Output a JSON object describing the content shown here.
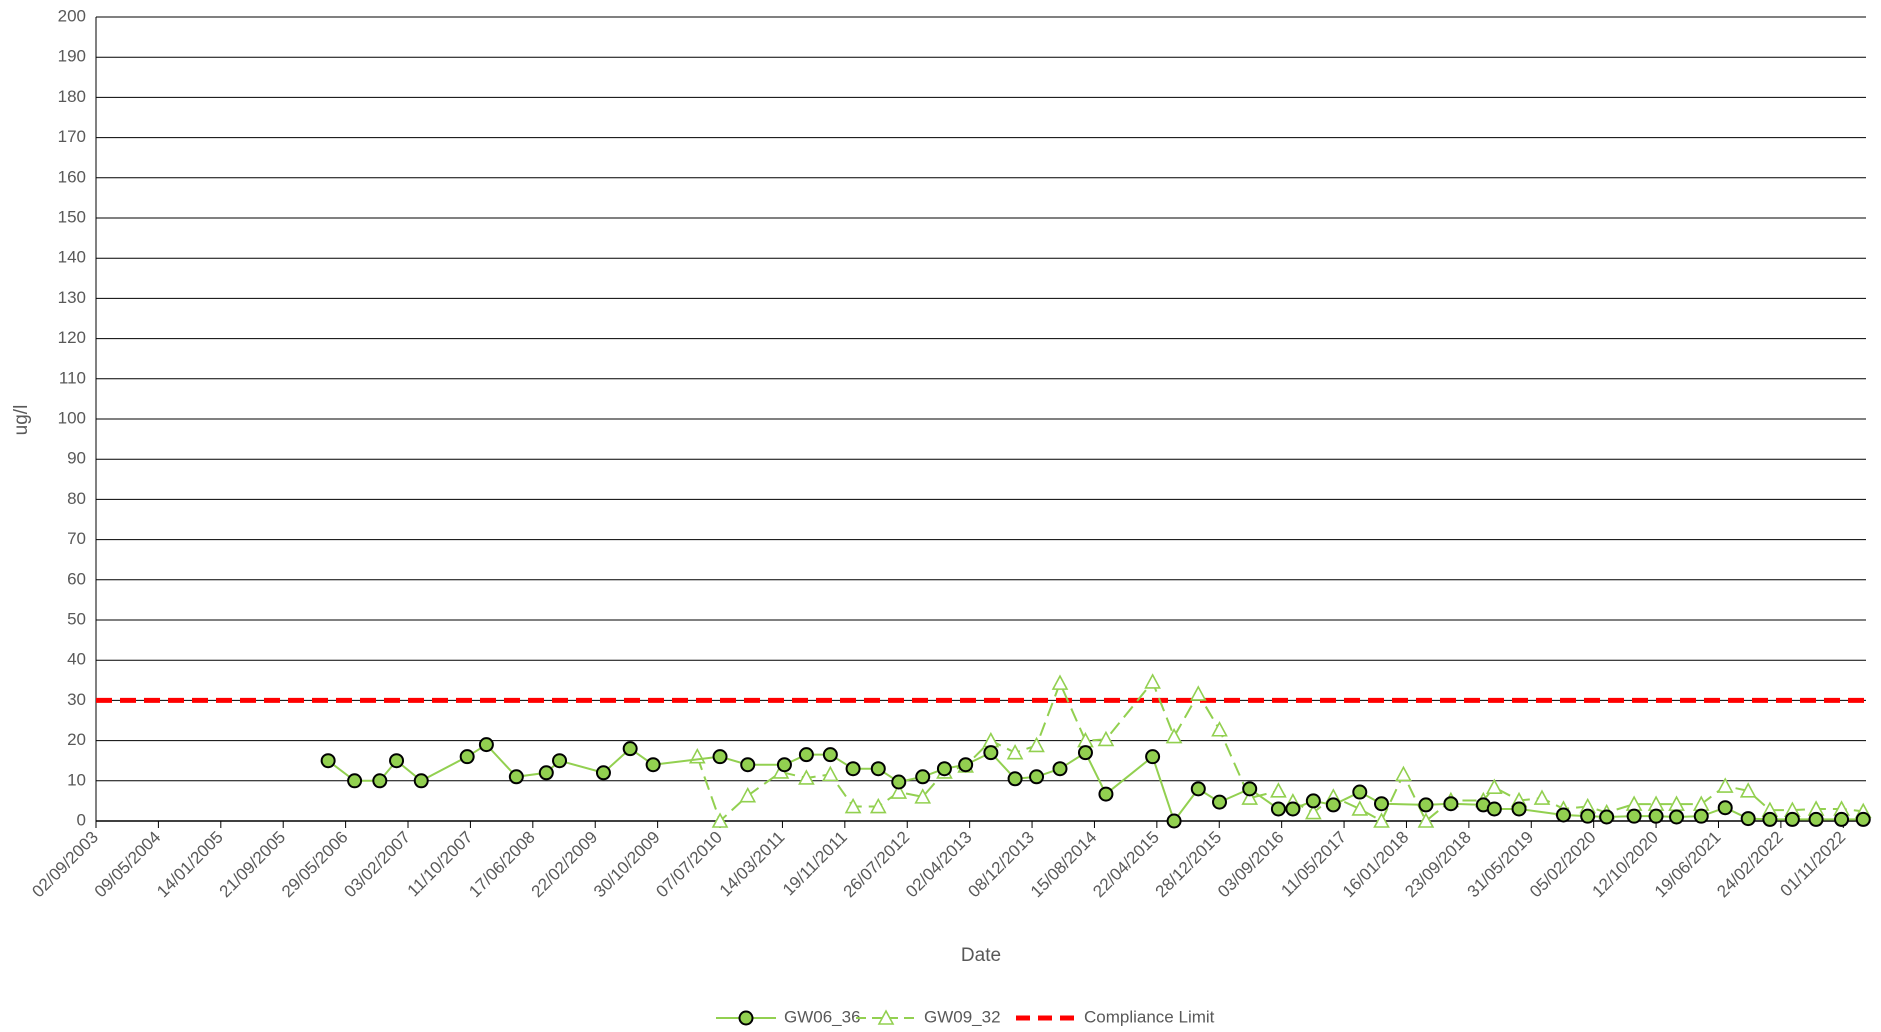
{
  "chart_data": {
    "type": "line",
    "ylabel": "ug/l",
    "xlabel": "Date",
    "ylim": [
      0,
      200
    ],
    "yticks": [
      0,
      10,
      20,
      30,
      40,
      50,
      60,
      70,
      80,
      90,
      100,
      110,
      120,
      130,
      140,
      150,
      160,
      170,
      180,
      190,
      200
    ],
    "xlim": [
      "02/09/2003",
      "31/01/2023"
    ],
    "xticks": [
      "02/09/2003",
      "09/05/2004",
      "14/01/2005",
      "21/09/2005",
      "29/05/2006",
      "03/02/2007",
      "11/10/2007",
      "17/06/2008",
      "22/02/2009",
      "30/10/2009",
      "07/07/2010",
      "14/03/2011",
      "19/11/2011",
      "26/07/2012",
      "02/04/2013",
      "08/12/2013",
      "15/08/2014",
      "22/04/2015",
      "28/12/2015",
      "03/09/2016",
      "11/05/2017",
      "16/01/2018",
      "23/09/2018",
      "31/05/2019",
      "05/02/2020",
      "12/10/2020",
      "19/06/2021",
      "24/02/2022",
      "01/11/2022"
    ],
    "grid": true,
    "legend": "bottom",
    "series": [
      {
        "name": "GW06_36",
        "color": "#92d050",
        "marker": "circle",
        "line_style": "solid",
        "x": [
          "20/03/2006",
          "04/07/2006",
          "13/10/2006",
          "19/12/2006",
          "28/03/2007",
          "28/09/2007",
          "14/12/2007",
          "12/04/2008",
          "10/08/2008",
          "02/10/2008",
          "27/03/2009",
          "12/07/2009",
          "12/10/2009",
          "07/07/2010",
          "26/10/2010",
          "22/03/2011",
          "18/06/2011",
          "22/09/2011",
          "22/12/2011",
          "01/04/2012",
          "22/06/2012",
          "26/09/2012",
          "22/12/2012",
          "17/03/2013",
          "26/06/2013",
          "01/10/2013",
          "26/12/2013",
          "30/03/2014",
          "10/07/2014",
          "30/09/2014",
          "05/04/2015",
          "30/06/2015",
          "05/10/2015",
          "29/12/2015",
          "28/04/2016",
          "21/08/2016",
          "18/10/2016",
          "08/01/2017",
          "29/03/2017",
          "13/07/2017",
          "08/10/2017",
          "04/04/2018",
          "13/07/2018",
          "20/11/2018",
          "03/01/2019",
          "12/04/2019",
          "07/10/2019",
          "12/01/2020",
          "28/03/2020",
          "16/07/2020",
          "12/10/2020",
          "02/01/2021",
          "11/04/2021",
          "16/07/2021",
          "16/10/2021",
          "11/01/2022",
          "11/04/2022",
          "15/07/2022",
          "25/10/2022",
          "20/01/2023"
        ],
        "values": [
          15,
          10,
          10,
          15,
          10,
          16,
          19,
          11,
          12,
          15,
          12,
          18,
          14,
          16,
          14,
          14,
          16.5,
          16.5,
          13,
          13,
          9.7,
          11,
          13,
          14,
          17,
          10.5,
          11,
          13,
          17,
          6.7,
          16,
          0,
          8,
          4.7,
          8,
          3,
          3,
          5,
          4,
          7.2,
          4.3,
          4,
          4.3,
          4,
          3,
          3,
          1.5,
          1.2,
          1,
          1.2,
          1.2,
          1,
          1.2,
          3.3,
          0.6,
          0.4,
          0.4,
          0.4,
          0.4,
          0.4
        ]
      },
      {
        "name": "GW09_32",
        "color": "#92d050",
        "marker": "triangle",
        "line_style": "dashed",
        "x": [
          "07/04/2010",
          "07/07/2010",
          "26/10/2010",
          "08/03/2011",
          "18/06/2011",
          "22/09/2011",
          "22/12/2011",
          "01/04/2012",
          "22/06/2012",
          "26/09/2012",
          "22/12/2012",
          "17/03/2013",
          "26/06/2013",
          "01/10/2013",
          "26/12/2013",
          "30/03/2014",
          "10/07/2014",
          "30/09/2014",
          "05/04/2015",
          "30/06/2015",
          "05/10/2015",
          "29/12/2015",
          "28/04/2016",
          "21/08/2016",
          "18/10/2016",
          "08/01/2017",
          "29/03/2017",
          "13/07/2017",
          "08/10/2017",
          "04/01/2018",
          "04/04/2018",
          "13/07/2018",
          "20/11/2018",
          "03/01/2019",
          "12/04/2019",
          "13/07/2019",
          "07/10/2019",
          "12/01/2020",
          "28/03/2020",
          "16/07/2020",
          "12/10/2020",
          "02/01/2021",
          "11/04/2021",
          "16/07/2021",
          "16/10/2021",
          "11/01/2022",
          "11/04/2022",
          "15/07/2022",
          "25/10/2022",
          "20/01/2023"
        ],
        "values": [
          16,
          0,
          6.3,
          12.2,
          10.7,
          11.6,
          3.6,
          3.6,
          7.2,
          6,
          12.2,
          13.7,
          20,
          17,
          18.8,
          34.3,
          20,
          20.3,
          34.6,
          21,
          31.6,
          22.7,
          5.7,
          7.5,
          4.8,
          2.1,
          6,
          3,
          0,
          11.6,
          0,
          5.1,
          5.1,
          8.4,
          5.1,
          5.7,
          3,
          3.6,
          2.1,
          4.2,
          4.2,
          4.2,
          4.2,
          8.7,
          7.5,
          2.7,
          2.7,
          3,
          3,
          2.4
        ]
      },
      {
        "name": "Compliance Limit",
        "color": "#ff0000",
        "marker": "none",
        "line_style": "thick-dashed",
        "x": [
          "02/09/2003",
          "31/01/2023"
        ],
        "values": [
          30,
          30
        ]
      }
    ]
  }
}
